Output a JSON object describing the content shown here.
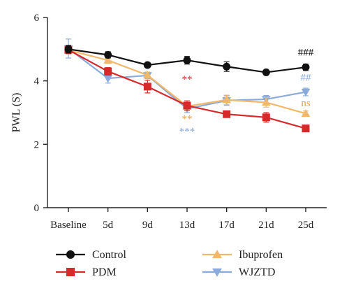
{
  "chart_data": {
    "type": "line",
    "title": "",
    "xlabel": "",
    "ylabel": "PWL (S)",
    "categories": [
      "Baseline",
      "5d",
      "9d",
      "13d",
      "17d",
      "21d",
      "25d"
    ],
    "ylim": [
      0,
      6
    ],
    "yticks": [
      "0",
      "2",
      "4",
      "6"
    ],
    "grid": false,
    "legend_position": "bottom",
    "series": [
      {
        "name": "Control",
        "color": "#111111",
        "marker": "circle",
        "values": [
          5.0,
          4.82,
          4.5,
          4.65,
          4.45,
          4.27,
          4.43
        ],
        "errors": [
          0.12,
          0.1,
          0.06,
          0.12,
          0.15,
          0.06,
          0.1
        ]
      },
      {
        "name": "PDM",
        "color": "#d62a2a",
        "marker": "square",
        "values": [
          4.98,
          4.3,
          3.82,
          3.22,
          2.95,
          2.85,
          2.5
        ],
        "errors": [
          0.12,
          0.12,
          0.2,
          0.15,
          0.1,
          0.15,
          0.08
        ]
      },
      {
        "name": "Ibuprofen",
        "color": "#f2b86a",
        "marker": "triangle-up",
        "values": [
          4.97,
          4.65,
          4.18,
          3.2,
          3.4,
          3.32,
          2.97
        ],
        "errors": [
          0.12,
          0.1,
          0.1,
          0.12,
          0.15,
          0.15,
          0.08
        ]
      },
      {
        "name": "WJZTD",
        "color": "#8aaadb",
        "marker": "triangle-down",
        "values": [
          5.02,
          4.08,
          4.17,
          3.12,
          3.38,
          3.42,
          3.65
        ],
        "errors": [
          0.3,
          0.15,
          0.1,
          0.12,
          0.15,
          0.12,
          0.12
        ]
      }
    ],
    "annotations": [
      {
        "text": "###",
        "category": "25d",
        "y": 4.8,
        "color": "#111111"
      },
      {
        "text": "##",
        "category": "25d",
        "y": 4.0,
        "color": "#8aaadb"
      },
      {
        "text": "ns",
        "category": "25d",
        "y": 3.2,
        "color": "#e6a04c"
      },
      {
        "text": "**",
        "category": "13d",
        "y": 3.95,
        "color": "#d62a2a"
      },
      {
        "text": "**",
        "category": "13d",
        "y": 2.7,
        "color": "#e6a04c"
      },
      {
        "text": "***",
        "category": "13d",
        "y": 2.3,
        "color": "#8aaadb"
      }
    ]
  }
}
